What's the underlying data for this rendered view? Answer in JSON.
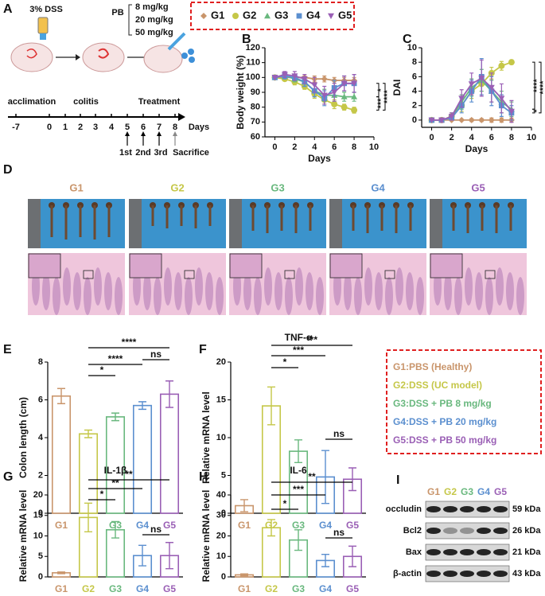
{
  "panel_labels": [
    "A",
    "B",
    "C",
    "D",
    "E",
    "F",
    "G",
    "H",
    "I"
  ],
  "schematic": {
    "dss": "3% DSS",
    "drug": "PB",
    "doses": [
      "8 mg/kg",
      "20 mg/kg",
      "50 mg/kg"
    ],
    "phases": [
      "acclimation",
      "colitis",
      "Treatment"
    ],
    "timeline": [
      "-7",
      "0",
      "1",
      "2",
      "3",
      "4",
      "5",
      "6",
      "7",
      "8"
    ],
    "timeline_unit": "Days",
    "doses_given": [
      "1st",
      "2nd",
      "3rd"
    ],
    "end": "Sacrifice"
  },
  "histology": {
    "groups": [
      "G1",
      "G2",
      "G3",
      "G4",
      "G5"
    ]
  },
  "group_legend": [
    "G1:PBS (Healthy)",
    "G2:DSS (UC model)",
    "G3:DSS + PB 8 mg/kg",
    "G4:DSS + PB 20 mg/kg",
    "G5:DSS + PB 50 mg/kg"
  ],
  "western_blot": {
    "groups": [
      "G1",
      "G2",
      "G3",
      "G4",
      "G5"
    ],
    "proteins": [
      {
        "name": "occludin",
        "size": "59 kDa"
      },
      {
        "name": "Bcl2",
        "size": "26 kDa"
      },
      {
        "name": "Bax",
        "size": "21 kDa"
      },
      {
        "name": "β-actin",
        "size": "43 kDa"
      }
    ]
  },
  "chart_data": [
    {
      "type": "line",
      "ylabel": "Body weight (%)",
      "xlabel": "Days",
      "x": [
        0,
        1,
        2,
        3,
        4,
        5,
        6,
        7,
        8
      ],
      "xlim": [
        -1,
        10
      ],
      "xticks": [
        0,
        2,
        4,
        6,
        8,
        10
      ],
      "ylim": [
        60,
        120
      ],
      "yticks": [
        60,
        70,
        80,
        90,
        100,
        110,
        120
      ],
      "series": [
        {
          "name": "G1",
          "color": "#c9956b",
          "values": [
            100,
            100,
            100,
            100,
            99,
            99,
            98,
            98,
            98
          ],
          "errors": [
            0,
            1,
            1,
            1,
            2,
            2,
            2,
            2,
            2
          ]
        },
        {
          "name": "G2",
          "color": "#c5c748",
          "values": [
            100,
            99,
            97,
            94,
            89,
            85,
            82,
            80,
            78
          ],
          "errors": [
            0,
            1,
            2,
            2,
            3,
            3,
            3,
            2,
            2
          ]
        },
        {
          "name": "G3",
          "color": "#69b87e",
          "values": [
            100,
            101,
            99,
            97,
            91,
            88,
            88,
            87,
            87
          ],
          "errors": [
            0,
            2,
            2,
            3,
            4,
            4,
            4,
            3,
            3
          ]
        },
        {
          "name": "G4",
          "color": "#5b8fcf",
          "values": [
            100,
            101,
            100,
            97,
            91,
            86,
            93,
            96,
            96
          ],
          "errors": [
            0,
            2,
            2,
            3,
            4,
            5,
            5,
            5,
            6
          ]
        },
        {
          "name": "G5",
          "color": "#9a5fb5",
          "values": [
            100,
            102,
            101,
            99,
            95,
            88,
            90,
            96,
            96
          ],
          "errors": [
            0,
            2,
            3,
            3,
            5,
            6,
            6,
            5,
            6
          ]
        }
      ],
      "significance": [
        "*",
        "***",
        "****"
      ]
    },
    {
      "type": "line",
      "ylabel": "DAI",
      "xlabel": "Days",
      "x": [
        0,
        1,
        2,
        3,
        4,
        5,
        6,
        7,
        8
      ],
      "xlim": [
        -1,
        10
      ],
      "xticks": [
        0,
        2,
        4,
        6,
        8,
        10
      ],
      "ylim": [
        -1,
        10
      ],
      "yticks": [
        0,
        2,
        4,
        6,
        8,
        10
      ],
      "series": [
        {
          "name": "G1",
          "color": "#c9956b",
          "values": [
            0,
            0,
            0,
            0,
            0,
            0,
            0,
            0,
            0
          ],
          "errors": [
            0,
            0,
            0,
            0,
            0.2,
            0.2,
            0.3,
            0.3,
            0.3
          ]
        },
        {
          "name": "G2",
          "color": "#c5c748",
          "values": [
            0,
            0,
            0.5,
            2,
            4,
            5,
            6.5,
            7.5,
            8
          ],
          "errors": [
            0,
            0,
            0.3,
            0.8,
            1,
            1,
            0.8,
            0.6,
            0.3
          ]
        },
        {
          "name": "G3",
          "color": "#69b87e",
          "values": [
            0,
            0,
            0.5,
            2.5,
            4.5,
            5.5,
            4,
            2.5,
            1.5
          ],
          "errors": [
            0,
            0,
            0.5,
            1,
            1.2,
            1.5,
            1.5,
            1.5,
            1
          ]
        },
        {
          "name": "G4",
          "color": "#5b8fcf",
          "values": [
            0,
            0,
            0.3,
            2,
            4,
            6,
            4,
            2,
            1
          ],
          "errors": [
            0,
            0,
            0.3,
            1,
            1.5,
            2.5,
            2,
            1.5,
            1
          ]
        },
        {
          "name": "G5",
          "color": "#9a5fb5",
          "values": [
            0,
            0,
            0.5,
            3,
            5,
            5.8,
            4.5,
            3,
            1.2
          ],
          "errors": [
            0,
            0.3,
            0.5,
            1.2,
            1.5,
            2.5,
            2,
            2,
            1.5
          ]
        }
      ],
      "significance": [
        "****",
        "****",
        "*"
      ]
    },
    {
      "type": "bar",
      "ylabel": "Colon length (cm)",
      "categories": [
        "G1",
        "G2",
        "G3",
        "G4",
        "G5"
      ],
      "values": [
        6.2,
        4.2,
        5.1,
        5.7,
        6.3
      ],
      "errors": [
        0.4,
        0.2,
        0.2,
        0.2,
        0.7
      ],
      "colors": [
        "#c9956b",
        "#c5c748",
        "#69b87e",
        "#5b8fcf",
        "#9a5fb5"
      ],
      "ylim": [
        0,
        8
      ],
      "yticks": [
        0,
        2,
        4,
        6,
        8
      ],
      "significance": [
        "*",
        "****",
        "****",
        "ns"
      ]
    },
    {
      "type": "bar",
      "title": "TNF-α",
      "ylabel": "Relative mRNA level",
      "categories": [
        "G1",
        "G2",
        "G3",
        "G4",
        "G5"
      ],
      "values": [
        1,
        14.2,
        8.2,
        4.8,
        4.5
      ],
      "errors": [
        0.8,
        2.5,
        1.5,
        3.5,
        1.5
      ],
      "colors": [
        "#c9956b",
        "#c5c748",
        "#69b87e",
        "#5b8fcf",
        "#9a5fb5"
      ],
      "ylim": [
        0,
        20
      ],
      "yticks": [
        0,
        5,
        10,
        15,
        20
      ],
      "significance": [
        "*",
        "***",
        "***",
        "ns"
      ]
    },
    {
      "type": "bar",
      "title": "IL-1β",
      "ylabel": "Relative mRNA level",
      "categories": [
        "G1",
        "G2",
        "G3",
        "G4",
        "G5"
      ],
      "values": [
        1,
        14.5,
        11.5,
        5.2,
        5.2
      ],
      "errors": [
        0.2,
        3.5,
        2,
        2.5,
        3.2
      ],
      "colors": [
        "#c9956b",
        "#c5c748",
        "#69b87e",
        "#5b8fcf",
        "#9a5fb5"
      ],
      "ylim": [
        0,
        20
      ],
      "yticks": [
        0,
        5,
        10,
        15,
        20
      ],
      "significance": [
        "*",
        "**",
        "**",
        "ns"
      ]
    },
    {
      "type": "bar",
      "title": "IL-6",
      "ylabel": "Relative mRNA level",
      "categories": [
        "G1",
        "G2",
        "G3",
        "G4",
        "G5"
      ],
      "values": [
        1,
        24,
        18,
        8,
        10
      ],
      "errors": [
        0.5,
        4,
        5,
        3,
        5
      ],
      "colors": [
        "#c9956b",
        "#c5c748",
        "#69b87e",
        "#5b8fcf",
        "#9a5fb5"
      ],
      "ylim": [
        0,
        40
      ],
      "yticks": [
        0,
        10,
        20,
        30,
        40
      ],
      "significance": [
        "*",
        "***",
        "**",
        "ns"
      ]
    }
  ]
}
